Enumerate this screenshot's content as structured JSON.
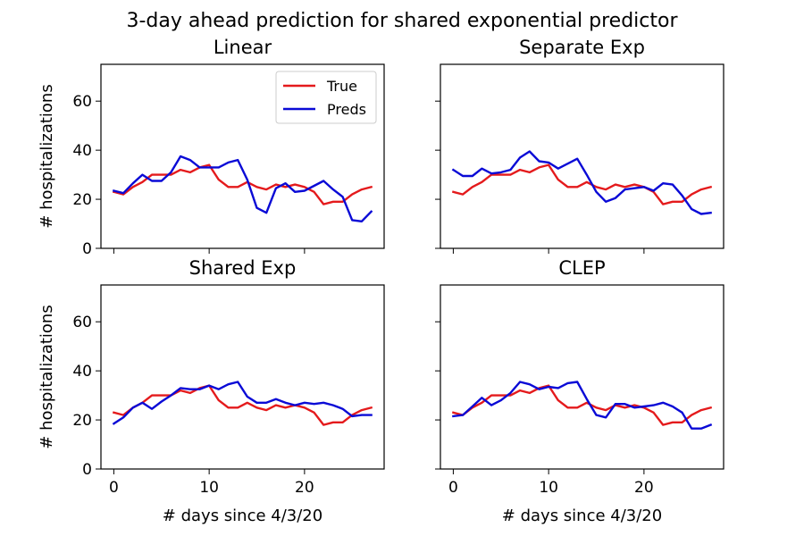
{
  "figure": {
    "suptitle": "3-day ahead prediction for shared exponential predictor"
  },
  "chart_data": [
    {
      "type": "line",
      "title": "Linear",
      "xlabel": "",
      "ylabel": "# hospitalizations",
      "xlim": [
        -1.35,
        28.35
      ],
      "ylim": [
        0,
        75
      ],
      "xticks": [
        0,
        10,
        20
      ],
      "yticks": [
        0,
        20,
        40,
        60
      ],
      "legend": "top-right",
      "x": [
        0,
        1,
        2,
        3,
        4,
        5,
        6,
        7,
        8,
        9,
        10,
        11,
        12,
        13,
        14,
        15,
        16,
        17,
        18,
        19,
        20,
        21,
        22,
        23,
        24,
        25,
        26,
        27
      ],
      "series": [
        {
          "name": "True",
          "color": "#e41a1c",
          "values": [
            23,
            22,
            25,
            27,
            30,
            30,
            30,
            32,
            31,
            33,
            34,
            28,
            25,
            25,
            27,
            25,
            24,
            26,
            25,
            26,
            25,
            23,
            18,
            19,
            19,
            22,
            24,
            25
          ]
        },
        {
          "name": "Preds",
          "color": "#0a0ad6",
          "values": [
            23.5,
            22.5,
            26.5,
            30,
            27.5,
            27.5,
            31,
            37.5,
            36,
            33,
            33,
            33,
            35,
            36,
            28,
            16.5,
            14.5,
            24.5,
            26.5,
            23,
            23.5,
            25.5,
            27.5,
            24,
            21,
            11.5,
            11,
            15
          ]
        }
      ]
    },
    {
      "type": "line",
      "title": "Separate Exp",
      "xlabel": "",
      "ylabel": "",
      "xlim": [
        -1.35,
        28.35
      ],
      "ylim": [
        0,
        75
      ],
      "xticks": [
        0,
        10,
        20
      ],
      "yticks": [
        0,
        20,
        40,
        60
      ],
      "x": [
        0,
        1,
        2,
        3,
        4,
        5,
        6,
        7,
        8,
        9,
        10,
        11,
        12,
        13,
        14,
        15,
        16,
        17,
        18,
        19,
        20,
        21,
        22,
        23,
        24,
        25,
        26,
        27
      ],
      "series": [
        {
          "name": "True",
          "color": "#e41a1c",
          "values": [
            23,
            22,
            25,
            27,
            30,
            30,
            30,
            32,
            31,
            33,
            34,
            28,
            25,
            25,
            27,
            25,
            24,
            26,
            25,
            26,
            25,
            23,
            18,
            19,
            19,
            22,
            24,
            25
          ]
        },
        {
          "name": "Preds",
          "color": "#0a0ad6",
          "values": [
            32,
            29.5,
            29.5,
            32.5,
            30.5,
            31,
            32,
            37,
            39.5,
            35.5,
            35,
            32.5,
            34.5,
            36.5,
            30,
            23,
            19,
            20.5,
            24,
            24.5,
            25,
            23.5,
            26.5,
            26,
            21.5,
            16,
            14,
            14.5
          ]
        }
      ]
    },
    {
      "type": "line",
      "title": "Shared Exp",
      "xlabel": "# days since 4/3/20",
      "ylabel": "# hospitalizations",
      "xlim": [
        -1.35,
        28.35
      ],
      "ylim": [
        0,
        75
      ],
      "xticks": [
        0,
        10,
        20
      ],
      "yticks": [
        0,
        20,
        40,
        60
      ],
      "x": [
        0,
        1,
        2,
        3,
        4,
        5,
        6,
        7,
        8,
        9,
        10,
        11,
        12,
        13,
        14,
        15,
        16,
        17,
        18,
        19,
        20,
        21,
        22,
        23,
        24,
        25,
        26,
        27
      ],
      "series": [
        {
          "name": "True",
          "color": "#e41a1c",
          "values": [
            23,
            22,
            25,
            27,
            30,
            30,
            30,
            32,
            31,
            33,
            34,
            28,
            25,
            25,
            27,
            25,
            24,
            26,
            25,
            26,
            25,
            23,
            18,
            19,
            19,
            22,
            24,
            25
          ]
        },
        {
          "name": "Preds",
          "color": "#0a0ad6",
          "values": [
            18.5,
            21,
            25,
            27,
            24.5,
            27.5,
            30,
            33,
            32.5,
            32.5,
            34,
            32.5,
            34.5,
            35.5,
            29.5,
            27,
            27,
            28.5,
            27,
            26,
            27,
            26.5,
            27,
            26,
            24.5,
            21.5,
            22,
            22
          ]
        }
      ]
    },
    {
      "type": "line",
      "title": "CLEP",
      "xlabel": "# days since 4/3/20",
      "ylabel": "",
      "xlim": [
        -1.35,
        28.35
      ],
      "ylim": [
        0,
        75
      ],
      "xticks": [
        0,
        10,
        20
      ],
      "yticks": [
        0,
        20,
        40,
        60
      ],
      "x": [
        0,
        1,
        2,
        3,
        4,
        5,
        6,
        7,
        8,
        9,
        10,
        11,
        12,
        13,
        14,
        15,
        16,
        17,
        18,
        19,
        20,
        21,
        22,
        23,
        24,
        25,
        26,
        27
      ],
      "series": [
        {
          "name": "True",
          "color": "#e41a1c",
          "values": [
            23,
            22,
            25,
            27,
            30,
            30,
            30,
            32,
            31,
            33,
            34,
            28,
            25,
            25,
            27,
            25,
            24,
            26,
            25,
            26,
            25,
            23,
            18,
            19,
            19,
            22,
            24,
            25
          ]
        },
        {
          "name": "Preds",
          "color": "#0a0ad6",
          "values": [
            21.5,
            22,
            25.5,
            29,
            26,
            28,
            31,
            35.5,
            34.5,
            32.5,
            33.5,
            33,
            35,
            35.5,
            28.5,
            22,
            21,
            26.5,
            26.5,
            25,
            25.5,
            26,
            27,
            25.5,
            23,
            16.5,
            16.5,
            18
          ]
        }
      ]
    }
  ]
}
